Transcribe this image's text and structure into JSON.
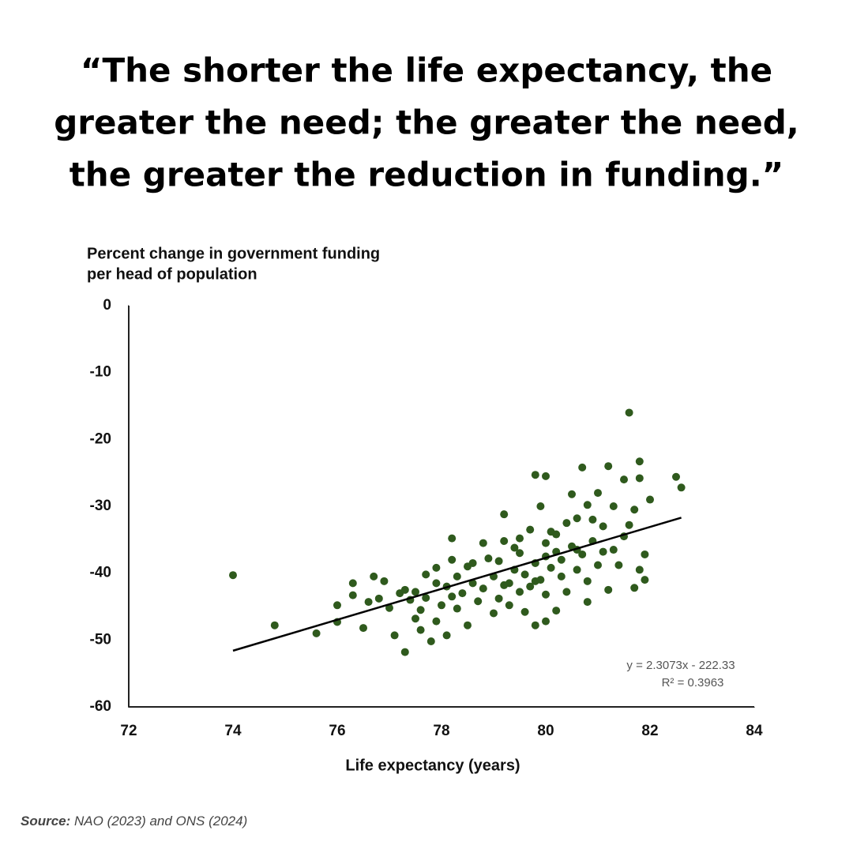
{
  "chart_data": {
    "type": "scatter",
    "title_lines": [
      "“The shorter the life expectancy, the",
      "greater the need; the greater the need,",
      "the greater the reduction in funding.”"
    ],
    "y_label_lines": [
      "Percent change in government funding",
      "per head of population"
    ],
    "x_label": "Life expectancy (years)",
    "source_label": "Source:",
    "source_text": "NAO (2023) and ONS (2024)",
    "xlim": [
      72,
      84
    ],
    "xticks": [
      72,
      74,
      76,
      78,
      80,
      82,
      84
    ],
    "ylim": [
      -60,
      0
    ],
    "yticks": [
      0,
      -10,
      -20,
      -30,
      -40,
      -50,
      -60
    ],
    "color": "#2f5a1d",
    "x": [
      74,
      74.8,
      75.6,
      76,
      76,
      76.3,
      76.3,
      76.5,
      76.6,
      76.7,
      76.8,
      76.9,
      77,
      77.1,
      77.2,
      77.3,
      77.3,
      77.4,
      77.5,
      77.5,
      77.6,
      77.6,
      77.7,
      77.7,
      77.8,
      77.9,
      77.9,
      78,
      78.1,
      78.1,
      78.2,
      78.2,
      78.3,
      78.3,
      78.4,
      78.5,
      78.5,
      78.6,
      78.7,
      78.8,
      78.8,
      78.9,
      79,
      79,
      79.1,
      79.1,
      79.2,
      79.2,
      79.3,
      79.3,
      79.4,
      79.5,
      79.5,
      79.6,
      79.6,
      79.7,
      79.7,
      79.8,
      79.8,
      79.8,
      79.9,
      79.9,
      80,
      80,
      80,
      80,
      80.1,
      80.1,
      80.2,
      80.2,
      80.3,
      80.3,
      80.4,
      80.4,
      80.5,
      80.5,
      80.6,
      80.6,
      80.7,
      80.7,
      80.8,
      80.8,
      80.8,
      80.9,
      81,
      81,
      81.1,
      81.2,
      81.2,
      81.3,
      81.3,
      81.4,
      81.5,
      81.5,
      81.6,
      81.6,
      81.7,
      81.7,
      81.8,
      81.8,
      81.8,
      81.9,
      81.9,
      82,
      82.5,
      82.6,
      80.2,
      79.5,
      80.9,
      78.6,
      79.2,
      80,
      77.9,
      79.4,
      80.6,
      78.2,
      79.8,
      81.1
    ],
    "y": [
      -40.3,
      -47.8,
      -49,
      -44.8,
      -47.3,
      -41.5,
      -43.3,
      -48.2,
      -44.3,
      -40.5,
      -43.8,
      -41.2,
      -45.2,
      -49.3,
      -43,
      -42.5,
      -51.8,
      -44,
      -46.8,
      -42.8,
      -48.5,
      -45.5,
      -43.7,
      -40.2,
      -50.2,
      -47.2,
      -41.5,
      -44.8,
      -49.3,
      -42,
      -38,
      -34.8,
      -45.3,
      -40.5,
      -43,
      -39,
      -47.8,
      -41.5,
      -44.2,
      -35.5,
      -42.3,
      -37.8,
      -46,
      -40.5,
      -43.8,
      -38.2,
      -35.2,
      -31.2,
      -41.5,
      -44.8,
      -39.5,
      -42.8,
      -37,
      -45.8,
      -40.2,
      -33.5,
      -42,
      -25.3,
      -47.8,
      -38.5,
      -30,
      -41,
      -25.5,
      -35.5,
      -47.2,
      -43.2,
      -39.2,
      -33.8,
      -36.8,
      -45.6,
      -40.5,
      -38,
      -32.5,
      -42.8,
      -36,
      -28.2,
      -39.5,
      -31.8,
      -24.2,
      -37.2,
      -41.2,
      -29.8,
      -44.3,
      -35.2,
      -28,
      -38.8,
      -33,
      -24,
      -42.5,
      -30,
      -36.5,
      -38.8,
      -26,
      -34.5,
      -16,
      -32.8,
      -42.2,
      -30.5,
      -23.3,
      -25.8,
      -39.5,
      -41,
      -37.2,
      -29,
      -25.6,
      -27.2,
      -34.2,
      -34.8,
      -32,
      -38.5,
      -41.8,
      -37.5,
      -39.2,
      -36.2,
      -36.5,
      -43.5,
      -41.2,
      -36.8
    ],
    "trendline": {
      "x": [
        74,
        82.6
      ],
      "y": [
        -51.6,
        -31.7
      ],
      "equation": "y = 2.3073x - 222.33",
      "r2": "R² = 0.3963"
    }
  }
}
